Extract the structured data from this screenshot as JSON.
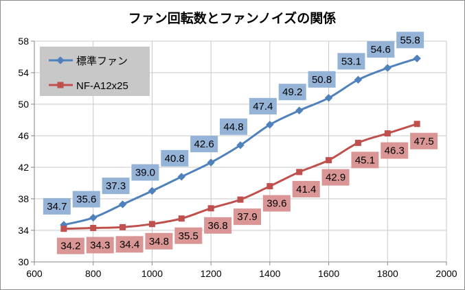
{
  "colors": {
    "series1_line": "#4f81bd",
    "series1_label_bg": "#95b3d7",
    "series2_line": "#c0504d",
    "series2_label_bg": "#d99694",
    "grid": "#c8c8c8",
    "legend_bg": "#c8c8c8"
  },
  "chart_data": {
    "type": "line",
    "title": "ファン回転数とファンノイズの関係",
    "xlabel": "",
    "ylabel": "",
    "xlim": [
      600,
      2000
    ],
    "ylim": [
      30,
      58
    ],
    "x_ticks": [
      600,
      800,
      1000,
      1200,
      1400,
      1600,
      1800,
      2000
    ],
    "y_ticks": [
      30,
      34,
      38,
      42,
      46,
      50,
      54,
      58
    ],
    "grid": true,
    "legend_position": "top-left",
    "x": [
      700,
      800,
      900,
      1000,
      1100,
      1200,
      1300,
      1400,
      1500,
      1600,
      1700,
      1800,
      1900
    ],
    "series": [
      {
        "name": "標準ファン",
        "marker": "diamond",
        "values": [
          34.7,
          35.6,
          37.3,
          39.0,
          40.8,
          42.6,
          44.8,
          47.4,
          49.2,
          50.8,
          53.1,
          54.6,
          55.8
        ],
        "labels": [
          "34.7",
          "35.6",
          "37.3",
          "39.0",
          "40.8",
          "42.6",
          "44.8",
          "47.4",
          "49.2",
          "50.8",
          "53.1",
          "54.6",
          "55.8"
        ]
      },
      {
        "name": "NF-A12x25",
        "marker": "square",
        "values": [
          34.2,
          34.3,
          34.4,
          34.8,
          35.5,
          36.8,
          37.9,
          39.6,
          41.4,
          42.9,
          45.1,
          46.3,
          47.5
        ],
        "labels": [
          "34.2",
          "34.3",
          "34.4",
          "34.8",
          "35.5",
          "36.8",
          "37.9",
          "39.6",
          "41.4",
          "42.9",
          "45.1",
          "46.3",
          "47.5"
        ]
      }
    ]
  }
}
